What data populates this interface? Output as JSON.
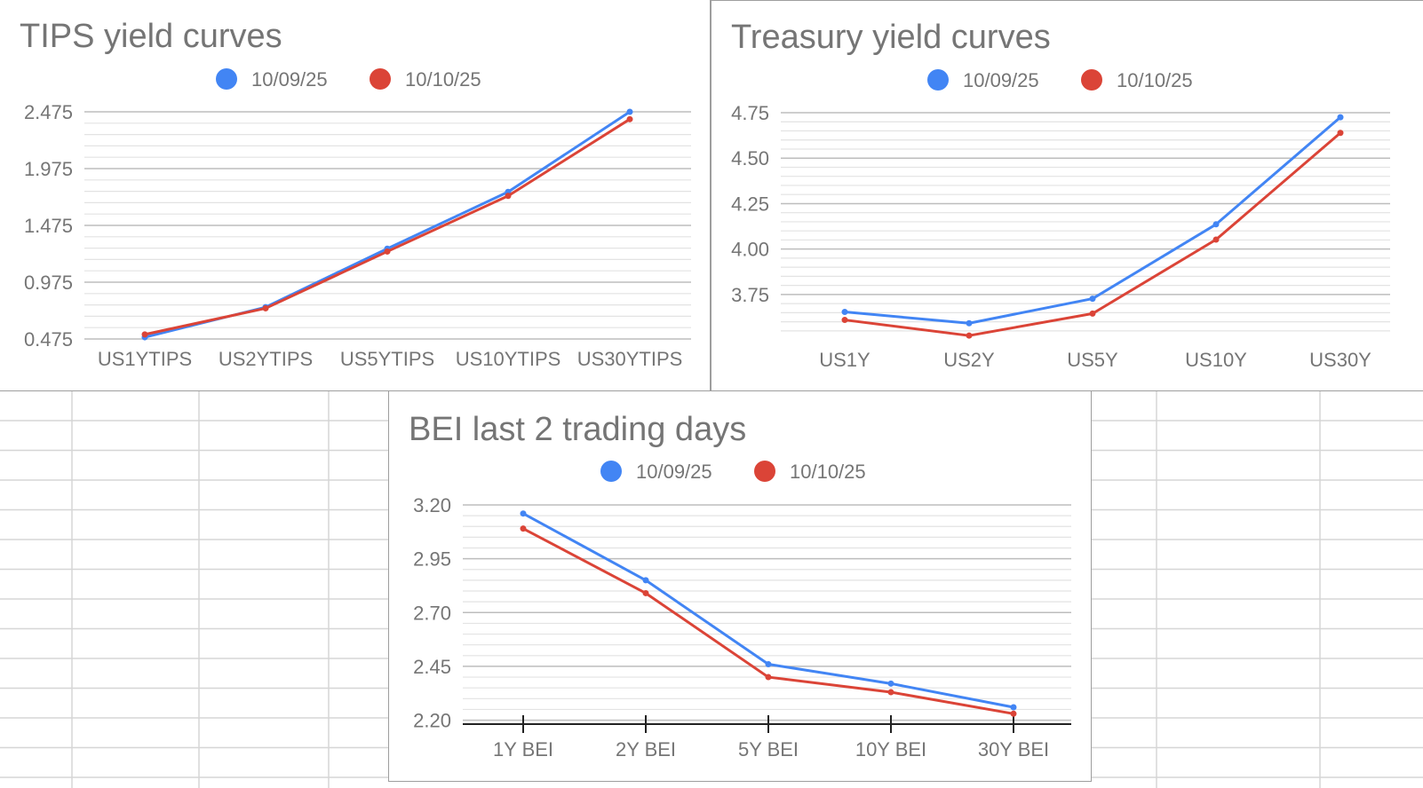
{
  "chart_data": [
    {
      "id": "tips",
      "type": "line",
      "title": "TIPS yield curves",
      "categories": [
        "US1YTIPS",
        "US2YTIPS",
        "US5YTIPS",
        "US10YTIPS",
        "US30YTIPS"
      ],
      "series": [
        {
          "name": "10/09/25",
          "color": "#4285f4",
          "values": [
            0.49,
            0.755,
            1.27,
            1.77,
            2.475
          ]
        },
        {
          "name": "10/10/25",
          "color": "#db4437",
          "values": [
            0.515,
            0.745,
            1.245,
            1.735,
            2.41
          ]
        }
      ],
      "yticks": [
        "0.475",
        "0.975",
        "1.475",
        "1.975",
        "2.475"
      ],
      "ylim": [
        0.475,
        2.475
      ],
      "minor_gridlines": 4,
      "legend": "top-center"
    },
    {
      "id": "treasury",
      "type": "line",
      "title": "Treasury yield curves",
      "categories": [
        "US1Y",
        "US2Y",
        "US5Y",
        "US10Y",
        "US30Y"
      ],
      "series": [
        {
          "name": "10/09/25",
          "color": "#4285f4",
          "values": [
            3.654,
            3.592,
            3.727,
            4.136,
            4.725
          ]
        },
        {
          "name": "10/10/25",
          "color": "#db4437",
          "values": [
            3.61,
            3.524,
            3.645,
            4.052,
            4.639
          ]
        }
      ],
      "yticks": [
        "3.75",
        "4.00",
        "4.25",
        "4.50",
        "4.75"
      ],
      "ylim": [
        3.52,
        4.75
      ],
      "minor_gridlines": 4,
      "legend": "top-center"
    },
    {
      "id": "bei",
      "type": "line",
      "title": "BEI last 2 trading days",
      "categories": [
        "1Y BEI",
        "2Y BEI",
        "5Y BEI",
        "10Y BEI",
        "30Y BEI"
      ],
      "series": [
        {
          "name": "10/09/25",
          "color": "#4285f4",
          "values": [
            3.16,
            2.85,
            2.46,
            2.37,
            2.26
          ]
        },
        {
          "name": "10/10/25",
          "color": "#db4437",
          "values": [
            3.09,
            2.79,
            2.4,
            2.33,
            2.23
          ]
        }
      ],
      "yticks": [
        "2.20",
        "2.45",
        "2.70",
        "2.95",
        "3.20"
      ],
      "ylim": [
        2.19,
        3.2
      ],
      "minor_gridlines": 4,
      "legend": "top-center"
    }
  ]
}
